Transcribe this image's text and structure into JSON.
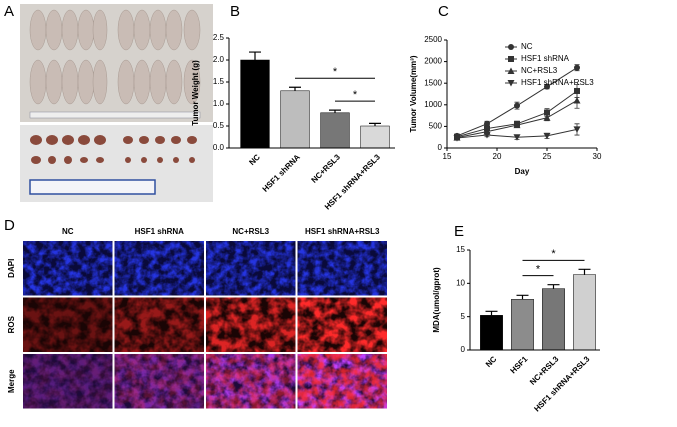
{
  "panel_labels": [
    "A",
    "B",
    "C",
    "D",
    "E"
  ],
  "chart_data": [
    {
      "type": "bar",
      "y_label": "Tumor Weight (g)",
      "categories": [
        "NC",
        "HSF1 shRNA",
        "NC+RSL3",
        "HSF1 shRNA+RSL3"
      ],
      "values": [
        2.0,
        1.3,
        0.8,
        0.5
      ],
      "errors": [
        0.18,
        0.08,
        0.06,
        0.06
      ],
      "colors": [
        "#000000",
        "#bdbdbd",
        "#777777",
        "#d9d9d9"
      ],
      "ylim": [
        0,
        2.5
      ],
      "yticks": [
        {
          "value": 0,
          "label": "0.0"
        },
        0.5,
        {
          "value": 1,
          "label": "1.0"
        },
        1.5,
        {
          "value": 2,
          "label": "2.0"
        },
        2.5
      ],
      "significance": [
        {
          "label": "*",
          "between": [
            "HSF1 shRNA",
            "HSF1 shRNA+RSL3"
          ]
        },
        {
          "label": "*",
          "between": [
            "NC+RSL3",
            "HSF1 shRNA+RSL3"
          ]
        }
      ]
    },
    {
      "type": "line",
      "x_label": "Day",
      "y_label": "Tumor Volume(mm³)",
      "x": [
        16,
        19,
        22,
        25,
        28
      ],
      "series": [
        {
          "name": "NC",
          "color": "#333333",
          "marker": "circle",
          "values": [
            280,
            560,
            980,
            1420,
            1860
          ],
          "errors": [
            40,
            60,
            80,
            50,
            70
          ]
        },
        {
          "name": "HSF1 shRNA",
          "color": "#333333",
          "marker": "square",
          "values": [
            260,
            450,
            560,
            820,
            1320
          ],
          "errors": [
            30,
            50,
            60,
            90,
            150
          ]
        },
        {
          "name": "NC+RSL3",
          "color": "#333333",
          "marker": "triangle-up",
          "values": [
            240,
            380,
            530,
            700,
            1100
          ],
          "errors": [
            30,
            40,
            50,
            70,
            180
          ]
        },
        {
          "name": "HSF1 shRNA+RSL3",
          "color": "#333333",
          "marker": "triangle-down",
          "values": [
            230,
            300,
            250,
            280,
            430
          ],
          "errors": [
            30,
            40,
            50,
            60,
            130
          ]
        }
      ],
      "xlim": [
        15,
        30
      ],
      "xticks": [
        15,
        20,
        25,
        30
      ],
      "ylim": [
        0,
        2500
      ],
      "yticks": [
        0,
        500,
        1000,
        1500,
        2000,
        2500
      ],
      "legend": "upper-left"
    },
    {
      "type": "bar",
      "y_label": "MDA(umol/gprot)",
      "categories": [
        "NC",
        "HSF1",
        "NC+RSL3",
        "HSF1 shRNA+RSL3"
      ],
      "values": [
        5.2,
        7.6,
        9.2,
        11.3
      ],
      "errors": [
        0.6,
        0.6,
        0.6,
        0.8
      ],
      "colors": [
        "#000000",
        "#8c8c8c",
        "#777777",
        "#d0d0d0"
      ],
      "ylim": [
        0,
        15
      ],
      "yticks": [
        0,
        5,
        10,
        15
      ],
      "significance": [
        {
          "label": "*",
          "between": [
            "HSF1",
            "NC+RSL3"
          ]
        },
        {
          "label": "*",
          "between": [
            "HSF1",
            "HSF1 shRNA+RSL3"
          ]
        }
      ]
    }
  ],
  "microscopy": {
    "columns": [
      "NC",
      "HSF1 shRNA",
      "NC+RSL3",
      "HSF1 shRNA+RSL3"
    ],
    "rows": [
      "DAPI",
      "ROS",
      "Merge"
    ]
  }
}
